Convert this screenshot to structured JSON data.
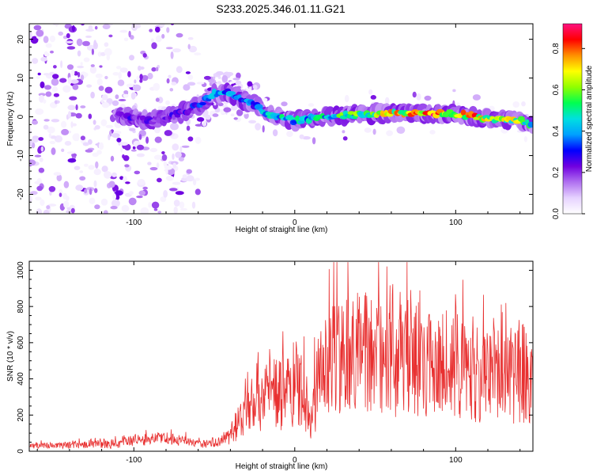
{
  "title": "S233.2025.346.01.11.G21",
  "chart_data": [
    {
      "type": "heatmap",
      "xlabel": "Height of straight line (km)",
      "ylabel": "Frequency (Hz)",
      "xlim": [
        -165,
        148
      ],
      "ylim": [
        -25,
        24
      ],
      "xticks": [
        -100,
        0,
        100
      ],
      "yticks": [
        -20,
        -10,
        0,
        10,
        20
      ],
      "colorbar": {
        "label": "Normalized spectral amplitude",
        "range": [
          0,
          0.92
        ],
        "ticks": [
          "0.0",
          "0.2",
          "0.4",
          "0.6",
          "0.8"
        ],
        "tick_values": [
          0,
          0.2,
          0.4,
          0.6,
          0.8
        ],
        "colors": [
          "#ffffff",
          "#e6d2ff",
          "#b070f0",
          "#7000e0",
          "#0000ff",
          "#00a0ff",
          "#00e0e0",
          "#00ff50",
          "#90ff00",
          "#ffff00",
          "#ff9000",
          "#ff0000",
          "#ff1080"
        ]
      },
      "ridge": {
        "x": [
          -110,
          -90,
          -70,
          -60,
          -50,
          -42,
          -35,
          -25,
          -15,
          -5,
          0,
          10,
          20,
          40,
          60,
          80,
          100,
          120,
          140,
          148
        ],
        "y": [
          0.5,
          -1,
          1,
          3,
          6,
          6.5,
          5,
          3,
          0.5,
          -0.5,
          -1,
          -0.5,
          0.2,
          0.5,
          1,
          1,
          0.8,
          -0.5,
          -1,
          -2
        ],
        "amplitude": [
          0.3,
          0.25,
          0.3,
          0.35,
          0.45,
          0.45,
          0.4,
          0.4,
          0.55,
          0.55,
          0.5,
          0.5,
          0.55,
          0.65,
          0.75,
          0.9,
          0.85,
          0.8,
          0.7,
          0.55
        ]
      }
    },
    {
      "type": "line",
      "xlabel": "Height of straight line (km)",
      "ylabel": "SNR (10 * v/v)",
      "xlim": [
        -165,
        148
      ],
      "ylim": [
        0,
        1050
      ],
      "xticks": [
        -100,
        0,
        100
      ],
      "yticks": [
        0,
        200,
        400,
        600,
        800,
        1000
      ],
      "color": "#e83030",
      "envelope": {
        "x": [
          -165,
          -130,
          -125,
          -110,
          -100,
          -80,
          -70,
          -60,
          -50,
          -40,
          -35,
          -30,
          -20,
          -15,
          -10,
          0,
          5,
          10,
          15,
          20,
          25,
          30,
          35,
          40,
          50,
          60,
          70,
          80,
          90,
          100,
          110,
          115,
          120,
          125,
          130,
          135,
          140,
          145,
          148
        ],
        "mean": [
          30,
          35,
          45,
          40,
          60,
          70,
          60,
          40,
          40,
          80,
          180,
          250,
          330,
          350,
          300,
          380,
          350,
          150,
          420,
          500,
          520,
          550,
          500,
          580,
          500,
          480,
          520,
          500,
          500,
          480,
          450,
          400,
          450,
          400,
          550,
          400,
          450,
          400,
          450
        ],
        "spread": [
          15,
          20,
          30,
          25,
          30,
          35,
          30,
          20,
          25,
          50,
          120,
          180,
          220,
          220,
          200,
          240,
          220,
          150,
          260,
          300,
          320,
          340,
          320,
          340,
          320,
          300,
          320,
          320,
          320,
          300,
          280,
          260,
          300,
          280,
          340,
          260,
          300,
          260,
          260
        ]
      }
    }
  ]
}
